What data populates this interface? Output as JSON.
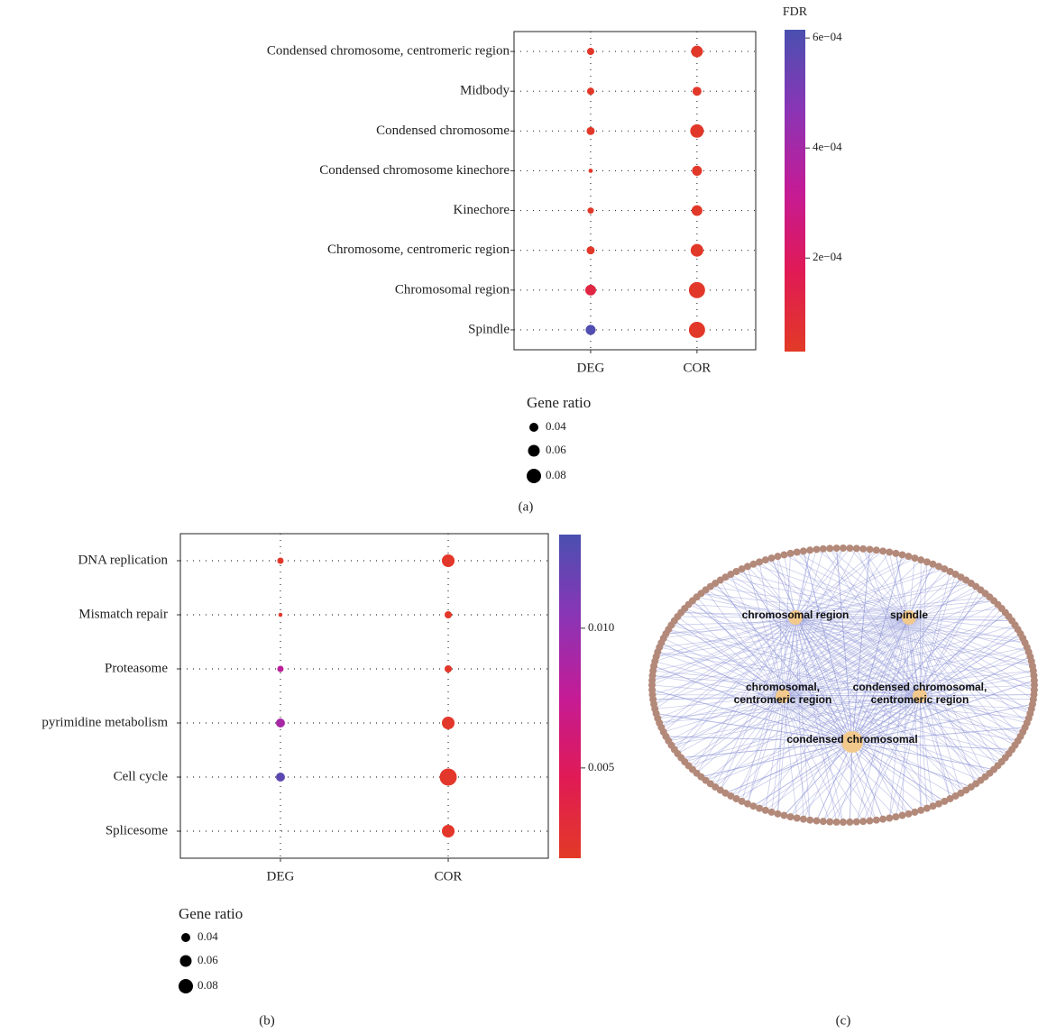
{
  "chart_data": [
    {
      "type": "dot",
      "panel_label": "(a)",
      "colorbar_title": "FDR",
      "categories": [
        "Condensed chromosome, centromeric region",
        "Midbody",
        "Condensed chromosome",
        "Condensed chromosome kinechore",
        "Kinechore",
        "Chromosome, centromeric region",
        "Chromosomal region",
        "Spindle"
      ],
      "series": [
        {
          "name": "DEG",
          "sizes": [
            0.027,
            0.027,
            0.033,
            0.005,
            0.02,
            0.033,
            0.053,
            0.047
          ],
          "fdr": [
            4e-05,
            4e-05,
            4e-05,
            4e-05,
            4e-05,
            4e-05,
            0.00012,
            0.0006
          ]
        },
        {
          "name": "COR",
          "sizes": [
            0.06,
            0.04,
            0.073,
            0.047,
            0.053,
            0.067,
            0.093,
            0.093
          ],
          "fdr": [
            4e-05,
            4e-05,
            4e-05,
            4e-05,
            4e-05,
            4e-05,
            4e-05,
            4e-05
          ]
        }
      ],
      "zlim": [
        3e-05,
        0.000615
      ],
      "zticks": [
        {
          "value": 0.0002,
          "label": "2e−04"
        },
        {
          "value": 0.0004,
          "label": "4e−04"
        },
        {
          "value": 0.0006,
          "label": "6e−04"
        }
      ],
      "colors": [
        "#e23a26",
        "#e01a55",
        "#c41b96",
        "#8a35b5",
        "#4a50b0"
      ],
      "grid": "dotted",
      "size_title": "Gene ratio",
      "size_legend": [
        0.04,
        0.06,
        0.08
      ]
    },
    {
      "type": "dot",
      "panel_label": "(b)",
      "categories": [
        "DNA replication",
        "Mismatch repair",
        "Proteasome",
        "pyrimidine metabolism",
        "Cell cycle",
        "Splicesome"
      ],
      "series": [
        {
          "name": "DEG",
          "sizes": [
            0.02,
            0.003,
            0.02,
            0.04,
            0.04,
            null
          ],
          "fdr": [
            0.002,
            0.002,
            0.008,
            0.009,
            0.0125,
            null
          ]
        },
        {
          "name": "COR",
          "sizes": [
            0.067,
            0.027,
            0.027,
            0.067,
            0.1,
            0.067
          ],
          "fdr": [
            0.002,
            0.002,
            0.002,
            0.002,
            0.002,
            0.002
          ]
        }
      ],
      "zlim": [
        0.00177,
        0.01335
      ],
      "zticks": [
        0.005,
        {
          "value": 0.01,
          "label": "0.010"
        }
      ],
      "colors": [
        "#e23a26",
        "#e01a55",
        "#c41b96",
        "#8a35b5",
        "#4a50b0"
      ],
      "grid": "dotted",
      "size_title": "Gene ratio",
      "size_legend": [
        0.04,
        0.06,
        0.08
      ]
    }
  ],
  "network": {
    "panel_label": "(c)",
    "nodes": [
      {
        "label_lines": [
          "chromosomal region"
        ]
      },
      {
        "label_lines": [
          "spindle"
        ]
      },
      {
        "label_lines": [
          "chromosomal,",
          "centromeric region"
        ]
      },
      {
        "label_lines": [
          "condensed chromosomal,",
          "centromeric region"
        ]
      },
      {
        "label_lines": [
          "condensed chromosomal"
        ]
      }
    ]
  }
}
